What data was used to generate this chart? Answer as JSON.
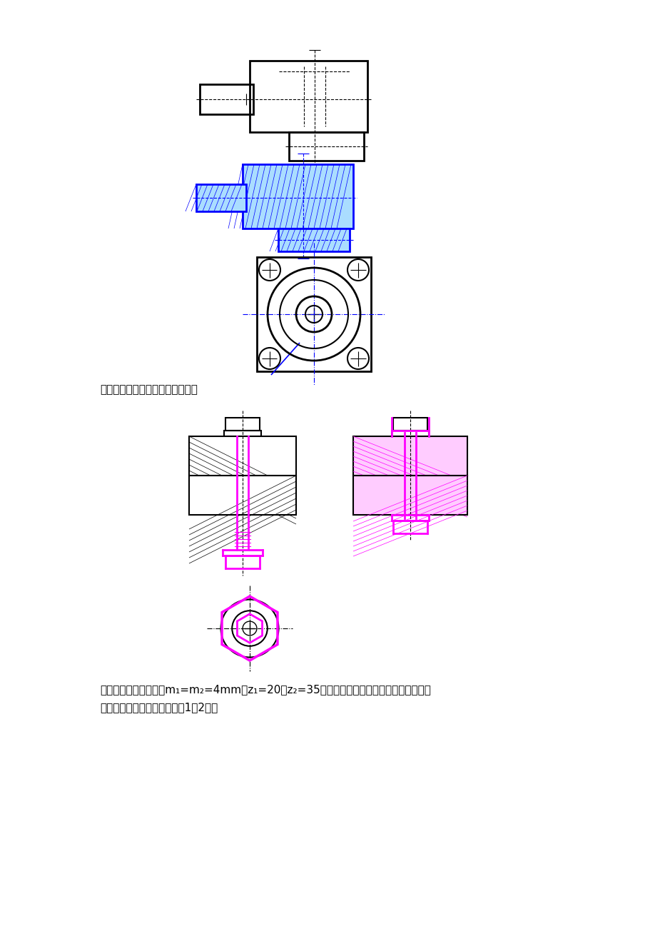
{
  "page_bg": "#ffffff",
  "fig_width": 9.2,
  "fig_height": 13.02,
  "section7_label": "七、补全螺栓连接图中所缺的图线",
  "section8_label": "八、两平板齿轮啮合，m₁=m₂=4mm，z₁=20，z₂=35，分别计算其齿顶圆、分度圆、齿根圆\n直径，并画出其啮合图（比例1：2）。",
  "black": "#000000",
  "blue": "#0000ff",
  "magenta": "#ff00ff",
  "gray": "#888888",
  "hatch_color": "#000000"
}
